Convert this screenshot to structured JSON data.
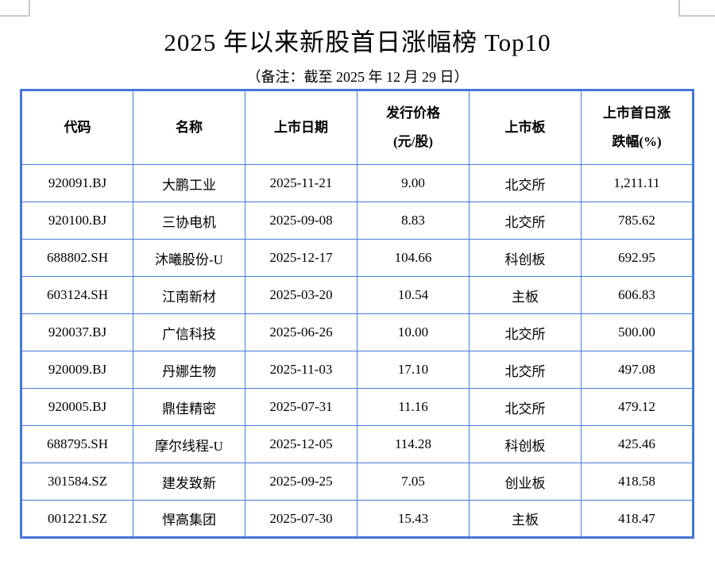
{
  "page": {
    "title": "2025 年以来新股首日涨幅榜 Top10",
    "subtitle": "（备注：截至 2025 年 12 月 29 日）"
  },
  "colors": {
    "table_border": "#4677d8",
    "corner_mark": "#c9c9c9",
    "text": "#000000",
    "background": "#ffffff"
  },
  "table": {
    "columns": [
      {
        "line1": "代码",
        "line2": ""
      },
      {
        "line1": "名称",
        "line2": ""
      },
      {
        "line1": "上市日期",
        "line2": ""
      },
      {
        "line1": "发行价格",
        "line2": "(元/股)"
      },
      {
        "line1": "上市板",
        "line2": ""
      },
      {
        "line1": "上市首日涨",
        "line2": "跌幅(%)"
      }
    ],
    "rows": [
      [
        "920091.BJ",
        "大鹏工业",
        "2025-11-21",
        "9.00",
        "北交所",
        "1,211.11"
      ],
      [
        "920100.BJ",
        "三协电机",
        "2025-09-08",
        "8.83",
        "北交所",
        "785.62"
      ],
      [
        "688802.SH",
        "沐曦股份-U",
        "2025-12-17",
        "104.66",
        "科创板",
        "692.95"
      ],
      [
        "603124.SH",
        "江南新材",
        "2025-03-20",
        "10.54",
        "主板",
        "606.83"
      ],
      [
        "920037.BJ",
        "广信科技",
        "2025-06-26",
        "10.00",
        "北交所",
        "500.00"
      ],
      [
        "920009.BJ",
        "丹娜生物",
        "2025-11-03",
        "17.10",
        "北交所",
        "497.08"
      ],
      [
        "920005.BJ",
        "鼎佳精密",
        "2025-07-31",
        "11.16",
        "北交所",
        "479.12"
      ],
      [
        "688795.SH",
        "摩尔线程-U",
        "2025-12-05",
        "114.28",
        "科创板",
        "425.46"
      ],
      [
        "301584.SZ",
        "建发致新",
        "2025-09-25",
        "7.05",
        "创业板",
        "418.58"
      ],
      [
        "001221.SZ",
        "悍高集团",
        "2025-07-30",
        "15.43",
        "主板",
        "418.47"
      ]
    ]
  }
}
